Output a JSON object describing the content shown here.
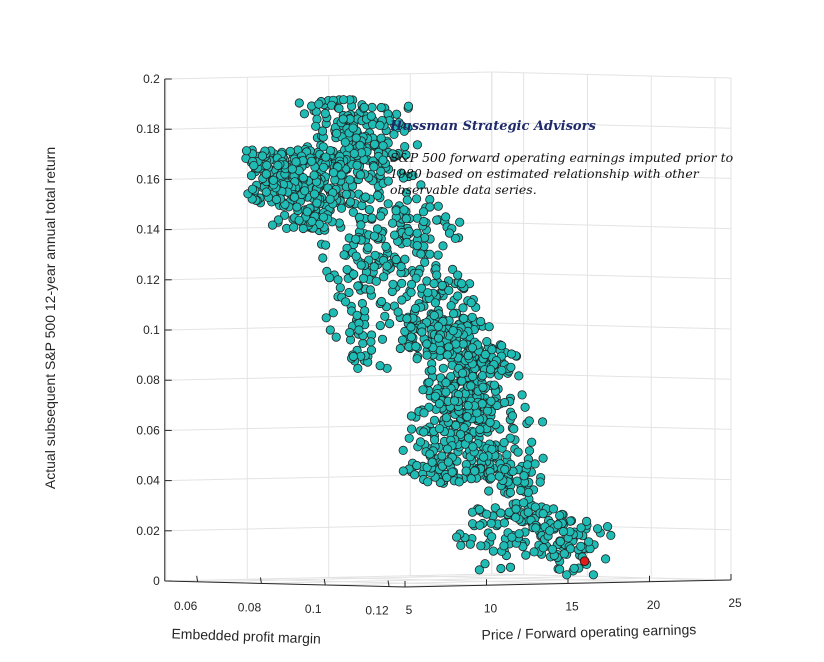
{
  "chart_data": {
    "type": "scatter",
    "projection": "3d",
    "zlabel": "Actual subsequent S&P 500 12-year annual total return",
    "xlabel": "Embedded profit margin",
    "ylabel": "Price / Forward operating earnings",
    "z_ticks": [
      "0",
      "0.02",
      "0.04",
      "0.06",
      "0.08",
      "0.1",
      "0.12",
      "0.14",
      "0.16",
      "0.18",
      "0.2"
    ],
    "x_ticks": [
      "0.06",
      "0.08",
      "0.1",
      "0.12"
    ],
    "y_ticks": [
      "5",
      "10",
      "15",
      "20",
      "25"
    ],
    "zlim": [
      0,
      0.2
    ],
    "xlim": [
      0.05,
      0.125
    ],
    "ylim": [
      5,
      25
    ],
    "grid": true,
    "marker_color": "#1fbcb6",
    "marker_edge": "#222222",
    "highlight_color": "#e01b1b",
    "highlight_point": {
      "margin": 0.121,
      "pe": 16.8,
      "return": 0.0085
    },
    "clusters": [
      {
        "margin": [
          0.064,
          0.075
        ],
        "pe": [
          7,
          9
        ],
        "ret": [
          0.15,
          0.172
        ],
        "n": 150
      },
      {
        "margin": [
          0.068,
          0.082
        ],
        "pe": [
          8,
          10
        ],
        "ret": [
          0.14,
          0.17
        ],
        "n": 140
      },
      {
        "margin": [
          0.078,
          0.095
        ],
        "pe": [
          7,
          10
        ],
        "ret": [
          0.15,
          0.194
        ],
        "n": 140
      },
      {
        "margin": [
          0.082,
          0.1
        ],
        "pe": [
          8,
          11
        ],
        "ret": [
          0.16,
          0.19
        ],
        "n": 120
      },
      {
        "margin": [
          0.08,
          0.095
        ],
        "pe": [
          8,
          11
        ],
        "ret": [
          0.12,
          0.15
        ],
        "n": 60
      },
      {
        "margin": [
          0.085,
          0.1
        ],
        "pe": [
          9,
          12
        ],
        "ret": [
          0.12,
          0.16
        ],
        "n": 60
      },
      {
        "margin": [
          0.09,
          0.105
        ],
        "pe": [
          10,
          13
        ],
        "ret": [
          0.12,
          0.15
        ],
        "n": 55
      },
      {
        "margin": [
          0.078,
          0.092
        ],
        "pe": [
          9,
          11
        ],
        "ret": [
          0.085,
          0.118
        ],
        "n": 55
      },
      {
        "margin": [
          0.09,
          0.108
        ],
        "pe": [
          10,
          13
        ],
        "ret": [
          0.09,
          0.12
        ],
        "n": 140
      },
      {
        "margin": [
          0.095,
          0.112
        ],
        "pe": [
          11,
          14
        ],
        "ret": [
          0.07,
          0.105
        ],
        "n": 150
      },
      {
        "margin": [
          0.1,
          0.112
        ],
        "pe": [
          12,
          15
        ],
        "ret": [
          0.07,
          0.095
        ],
        "n": 90
      },
      {
        "margin": [
          0.1,
          0.115
        ],
        "pe": [
          11,
          14
        ],
        "ret": [
          0.04,
          0.075
        ],
        "n": 120
      },
      {
        "margin": [
          0.098,
          0.11
        ],
        "pe": [
          10,
          13
        ],
        "ret": [
          0.04,
          0.07
        ],
        "n": 100
      },
      {
        "margin": [
          0.105,
          0.118
        ],
        "pe": [
          12,
          15
        ],
        "ret": [
          0.04,
          0.07
        ],
        "n": 60
      },
      {
        "margin": [
          0.11,
          0.12
        ],
        "pe": [
          13,
          15
        ],
        "ret": [
          0.025,
          0.05
        ],
        "n": 50
      },
      {
        "margin": [
          0.11,
          0.122
        ],
        "pe": [
          13,
          17
        ],
        "ret": [
          0.01,
          0.03
        ],
        "n": 75
      },
      {
        "margin": [
          0.116,
          0.124
        ],
        "pe": [
          15,
          18
        ],
        "ret": [
          0.003,
          0.025
        ],
        "n": 50
      },
      {
        "margin": [
          0.105,
          0.118
        ],
        "pe": [
          11,
          14
        ],
        "ret": [
          0.005,
          0.03
        ],
        "n": 35
      }
    ]
  },
  "annotation": {
    "title": "Hussman Strategic Advisors",
    "lines": [
      "S&P 500 forward operating earnings imputed prior to",
      "1980 based on estimated relationship with other",
      "observable data series."
    ]
  }
}
